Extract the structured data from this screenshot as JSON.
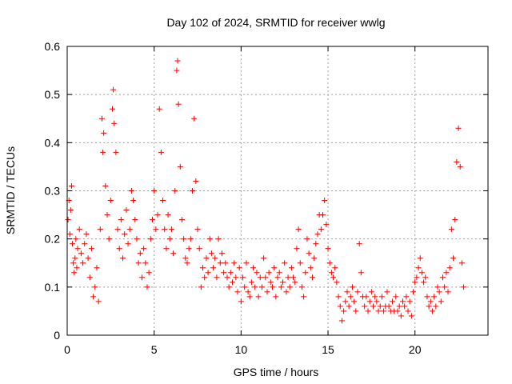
{
  "chart_data": {
    "type": "scatter",
    "title": "Day 102 of 2024, SRMTID for receiver wwlg",
    "xlabel": "GPS time / hours",
    "ylabel": "SRMTID / TECUs",
    "xlim": [
      0,
      24.2
    ],
    "ylim": [
      0,
      0.6
    ],
    "xticks": [
      0,
      5,
      10,
      15,
      20
    ],
    "yticks": [
      0,
      0.1,
      0.2,
      0.3,
      0.4,
      0.5,
      0.6
    ],
    "marker": "+",
    "color": "#ff0000",
    "grid": true,
    "series": [
      {
        "name": "SRMTID",
        "points": [
          [
            0.05,
            0.24
          ],
          [
            0.1,
            0.28
          ],
          [
            0.15,
            0.21
          ],
          [
            0.2,
            0.26
          ],
          [
            0.25,
            0.31
          ],
          [
            0.3,
            0.19
          ],
          [
            0.35,
            0.15
          ],
          [
            0.4,
            0.13
          ],
          [
            0.45,
            0.16
          ],
          [
            0.5,
            0.2
          ],
          [
            0.55,
            0.14
          ],
          [
            0.6,
            0.18
          ],
          [
            0.7,
            0.22
          ],
          [
            0.8,
            0.17
          ],
          [
            0.9,
            0.15
          ],
          [
            1.0,
            0.19
          ],
          [
            1.1,
            0.21
          ],
          [
            1.2,
            0.16
          ],
          [
            1.3,
            0.12
          ],
          [
            1.4,
            0.18
          ],
          [
            1.5,
            0.08
          ],
          [
            1.6,
            0.1
          ],
          [
            1.7,
            0.14
          ],
          [
            1.8,
            0.07
          ],
          [
            1.9,
            0.22
          ],
          [
            2.0,
            0.45
          ],
          [
            2.05,
            0.38
          ],
          [
            2.1,
            0.42
          ],
          [
            2.2,
            0.31
          ],
          [
            2.3,
            0.25
          ],
          [
            2.4,
            0.2
          ],
          [
            2.5,
            0.28
          ],
          [
            2.6,
            0.47
          ],
          [
            2.65,
            0.51
          ],
          [
            2.7,
            0.44
          ],
          [
            2.8,
            0.38
          ],
          [
            2.9,
            0.22
          ],
          [
            3.0,
            0.18
          ],
          [
            3.1,
            0.24
          ],
          [
            3.2,
            0.16
          ],
          [
            3.3,
            0.21
          ],
          [
            3.4,
            0.26
          ],
          [
            3.5,
            0.19
          ],
          [
            3.6,
            0.22
          ],
          [
            3.7,
            0.3
          ],
          [
            3.8,
            0.28
          ],
          [
            3.9,
            0.24
          ],
          [
            4.0,
            0.2
          ],
          [
            4.1,
            0.15
          ],
          [
            4.2,
            0.17
          ],
          [
            4.3,
            0.12
          ],
          [
            4.4,
            0.18
          ],
          [
            4.5,
            0.15
          ],
          [
            4.6,
            0.1
          ],
          [
            4.7,
            0.13
          ],
          [
            4.8,
            0.2
          ],
          [
            4.9,
            0.24
          ],
          [
            5.0,
            0.3
          ],
          [
            5.1,
            0.22
          ],
          [
            5.2,
            0.25
          ],
          [
            5.3,
            0.47
          ],
          [
            5.4,
            0.38
          ],
          [
            5.5,
            0.28
          ],
          [
            5.6,
            0.22
          ],
          [
            5.7,
            0.18
          ],
          [
            5.8,
            0.25
          ],
          [
            5.9,
            0.2
          ],
          [
            6.0,
            0.22
          ],
          [
            6.1,
            0.17
          ],
          [
            6.2,
            0.3
          ],
          [
            6.3,
            0.55
          ],
          [
            6.35,
            0.57
          ],
          [
            6.4,
            0.48
          ],
          [
            6.5,
            0.35
          ],
          [
            6.6,
            0.24
          ],
          [
            6.7,
            0.2
          ],
          [
            6.8,
            0.16
          ],
          [
            6.9,
            0.15
          ],
          [
            7.0,
            0.18
          ],
          [
            7.1,
            0.2
          ],
          [
            7.2,
            0.3
          ],
          [
            7.3,
            0.45
          ],
          [
            7.4,
            0.32
          ],
          [
            7.5,
            0.22
          ],
          [
            7.6,
            0.18
          ],
          [
            7.7,
            0.1
          ],
          [
            7.8,
            0.14
          ],
          [
            7.9,
            0.12
          ],
          [
            8.0,
            0.16
          ],
          [
            8.1,
            0.13
          ],
          [
            8.2,
            0.2
          ],
          [
            8.3,
            0.17
          ],
          [
            8.4,
            0.14
          ],
          [
            8.5,
            0.16
          ],
          [
            8.6,
            0.12
          ],
          [
            8.7,
            0.2
          ],
          [
            8.8,
            0.15
          ],
          [
            8.9,
            0.17
          ],
          [
            9.0,
            0.13
          ],
          [
            9.1,
            0.15
          ],
          [
            9.2,
            0.12
          ],
          [
            9.3,
            0.1
          ],
          [
            9.4,
            0.13
          ],
          [
            9.5,
            0.11
          ],
          [
            9.6,
            0.15
          ],
          [
            9.7,
            0.12
          ],
          [
            9.8,
            0.09
          ],
          [
            9.9,
            0.14
          ],
          [
            10.0,
            0.07
          ],
          [
            10.1,
            0.12
          ],
          [
            10.2,
            0.1
          ],
          [
            10.3,
            0.15
          ],
          [
            10.4,
            0.09
          ],
          [
            10.5,
            0.08
          ],
          [
            10.6,
            0.11
          ],
          [
            10.7,
            0.14
          ],
          [
            10.8,
            0.1
          ],
          [
            10.9,
            0.13
          ],
          [
            11.0,
            0.08
          ],
          [
            11.1,
            0.12
          ],
          [
            11.2,
            0.1
          ],
          [
            11.3,
            0.16
          ],
          [
            11.4,
            0.12
          ],
          [
            11.5,
            0.09
          ],
          [
            11.6,
            0.13
          ],
          [
            11.7,
            0.11
          ],
          [
            11.8,
            0.1
          ],
          [
            11.9,
            0.14
          ],
          [
            12.0,
            0.08
          ],
          [
            12.1,
            0.12
          ],
          [
            12.2,
            0.13
          ],
          [
            12.3,
            0.1
          ],
          [
            12.4,
            0.11
          ],
          [
            12.5,
            0.15
          ],
          [
            12.6,
            0.09
          ],
          [
            12.7,
            0.12
          ],
          [
            12.8,
            0.1
          ],
          [
            12.9,
            0.14
          ],
          [
            13.0,
            0.12
          ],
          [
            13.1,
            0.11
          ],
          [
            13.2,
            0.18
          ],
          [
            13.3,
            0.22
          ],
          [
            13.4,
            0.15
          ],
          [
            13.5,
            0.1
          ],
          [
            13.6,
            0.08
          ],
          [
            13.7,
            0.13
          ],
          [
            13.8,
            0.2
          ],
          [
            13.9,
            0.17
          ],
          [
            14.0,
            0.14
          ],
          [
            14.1,
            0.12
          ],
          [
            14.2,
            0.16
          ],
          [
            14.3,
            0.19
          ],
          [
            14.4,
            0.21
          ],
          [
            14.5,
            0.25
          ],
          [
            14.6,
            0.22
          ],
          [
            14.7,
            0.25
          ],
          [
            14.8,
            0.28
          ],
          [
            14.9,
            0.23
          ],
          [
            15.0,
            0.18
          ],
          [
            15.1,
            0.15
          ],
          [
            15.2,
            0.13
          ],
          [
            15.3,
            0.12
          ],
          [
            15.4,
            0.14
          ],
          [
            15.5,
            0.11
          ],
          [
            15.6,
            0.08
          ],
          [
            15.7,
            0.06
          ],
          [
            15.8,
            0.03
          ],
          [
            15.9,
            0.05
          ],
          [
            16.0,
            0.07
          ],
          [
            16.1,
            0.09
          ],
          [
            16.2,
            0.06
          ],
          [
            16.3,
            0.08
          ],
          [
            16.4,
            0.1
          ],
          [
            16.5,
            0.07
          ],
          [
            16.6,
            0.05
          ],
          [
            16.7,
            0.09
          ],
          [
            16.8,
            0.19
          ],
          [
            16.9,
            0.13
          ],
          [
            17.0,
            0.08
          ],
          [
            17.1,
            0.06
          ],
          [
            17.2,
            0.08
          ],
          [
            17.3,
            0.05
          ],
          [
            17.4,
            0.07
          ],
          [
            17.5,
            0.09
          ],
          [
            17.6,
            0.06
          ],
          [
            17.7,
            0.08
          ],
          [
            17.8,
            0.07
          ],
          [
            17.9,
            0.05
          ],
          [
            18.0,
            0.06
          ],
          [
            18.1,
            0.08
          ],
          [
            18.2,
            0.05
          ],
          [
            18.3,
            0.06
          ],
          [
            18.4,
            0.09
          ],
          [
            18.5,
            0.06
          ],
          [
            18.6,
            0.05
          ],
          [
            18.7,
            0.07
          ],
          [
            18.8,
            0.05
          ],
          [
            18.9,
            0.08
          ],
          [
            19.0,
            0.05
          ],
          [
            19.1,
            0.06
          ],
          [
            19.2,
            0.04
          ],
          [
            19.3,
            0.07
          ],
          [
            19.4,
            0.06
          ],
          [
            19.5,
            0.08
          ],
          [
            19.6,
            0.05
          ],
          [
            19.7,
            0.07
          ],
          [
            19.8,
            0.04
          ],
          [
            19.9,
            0.09
          ],
          [
            20.0,
            0.11
          ],
          [
            20.1,
            0.12
          ],
          [
            20.2,
            0.14
          ],
          [
            20.3,
            0.16
          ],
          [
            20.4,
            0.13
          ],
          [
            20.5,
            0.11
          ],
          [
            20.6,
            0.12
          ],
          [
            20.7,
            0.08
          ],
          [
            20.8,
            0.06
          ],
          [
            20.9,
            0.07
          ],
          [
            21.0,
            0.05
          ],
          [
            21.1,
            0.08
          ],
          [
            21.2,
            0.06
          ],
          [
            21.3,
            0.1
          ],
          [
            21.4,
            0.09
          ],
          [
            21.5,
            0.07
          ],
          [
            21.6,
            0.12
          ],
          [
            21.7,
            0.1
          ],
          [
            21.8,
            0.13
          ],
          [
            21.9,
            0.09
          ],
          [
            22.0,
            0.14
          ],
          [
            22.1,
            0.22
          ],
          [
            22.2,
            0.16
          ],
          [
            22.3,
            0.24
          ],
          [
            22.4,
            0.36
          ],
          [
            22.5,
            0.43
          ],
          [
            22.6,
            0.35
          ],
          [
            22.7,
            0.15
          ],
          [
            22.8,
            0.1
          ]
        ]
      }
    ]
  }
}
